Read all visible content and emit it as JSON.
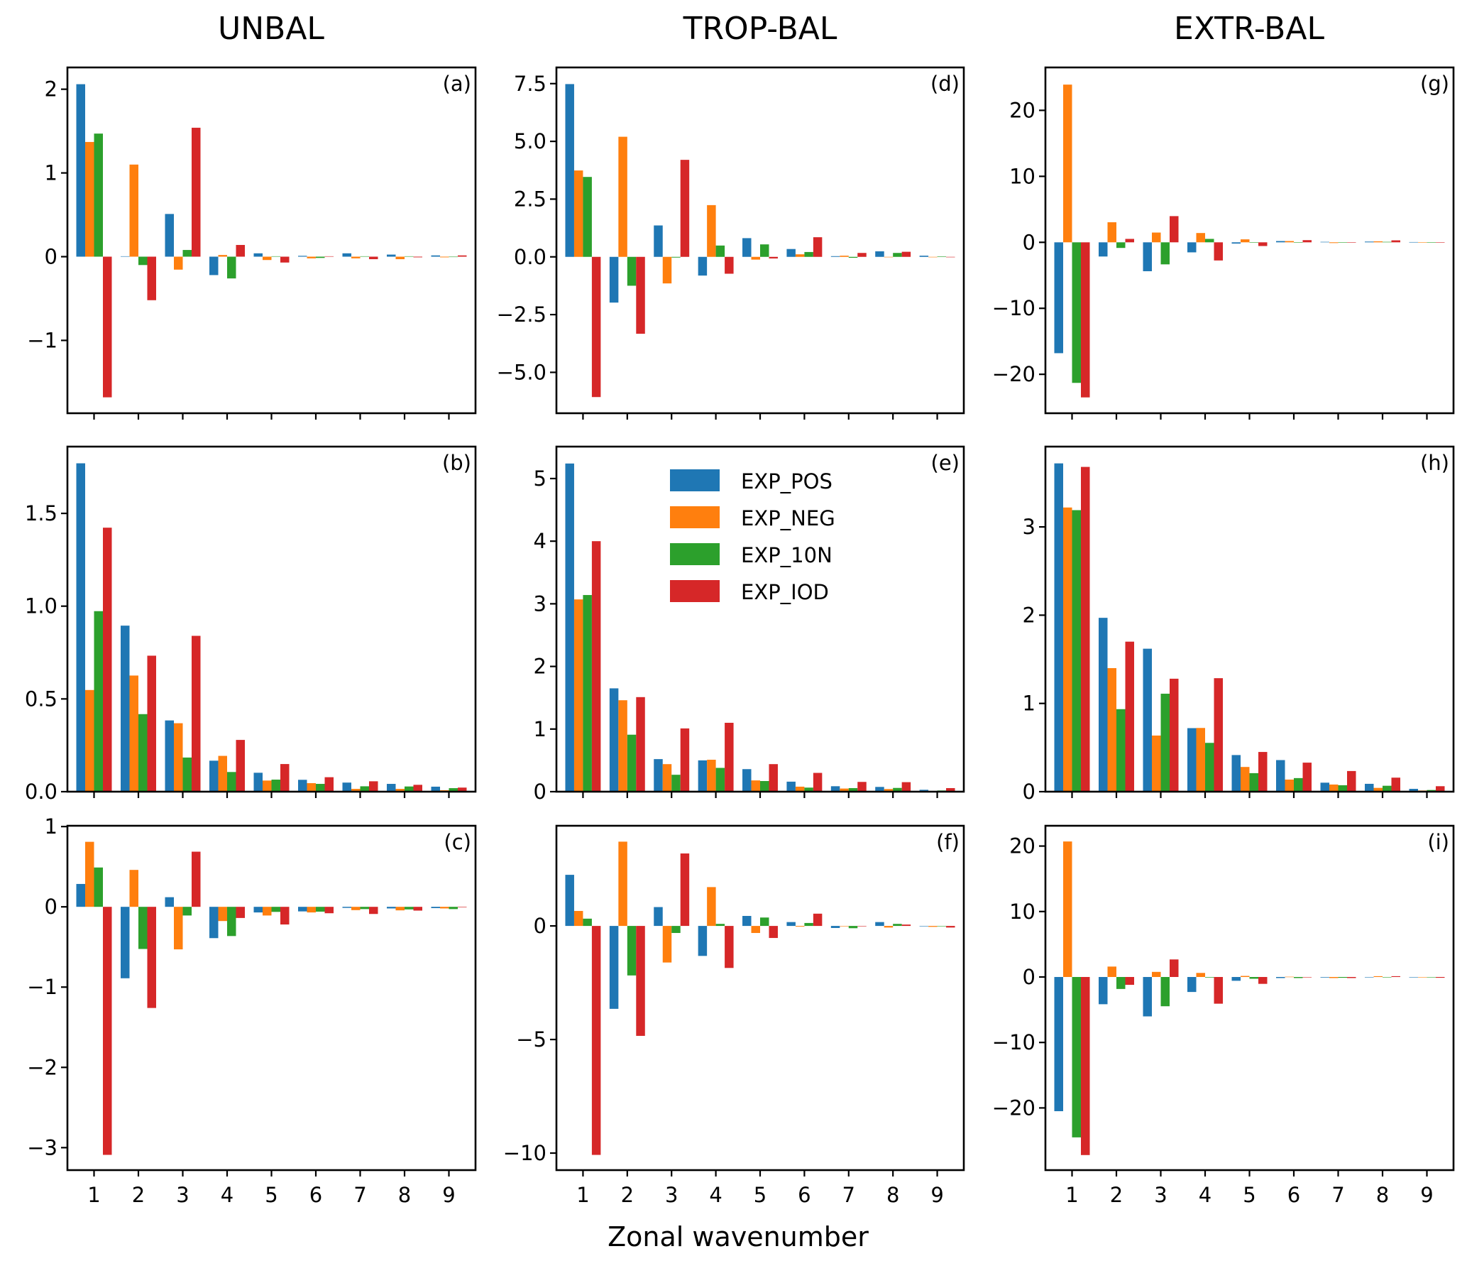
{
  "figure": {
    "column_titles": [
      "UNBAL",
      "TROP-BAL",
      "EXTR-BAL"
    ],
    "xlabel": "Zonal wavenumber"
  },
  "legend": {
    "placement": "upper-center of panel (e)",
    "entries": [
      {
        "label": "EXP_POS",
        "color": "#1f77b4"
      },
      {
        "label": "EXP_NEG",
        "color": "#ff7f0e"
      },
      {
        "label": "EXP_10N",
        "color": "#2ca02c"
      },
      {
        "label": "EXP_IOD",
        "color": "#d62728"
      }
    ]
  },
  "chart_data": [
    {
      "type": "bar",
      "panel": "(a)",
      "column": "UNBAL",
      "row": 1,
      "categories": [
        "1",
        "2",
        "3",
        "4",
        "5",
        "6",
        "7",
        "8",
        "9"
      ],
      "xlabel": "",
      "ylabel": "",
      "ylim": [
        -1.87,
        2.26
      ],
      "yticks": [
        -1,
        0,
        1,
        2
      ],
      "ytick_labels": [
        "−1",
        "0",
        "1",
        "2"
      ],
      "show_xtick_labels": false,
      "series": [
        {
          "name": "EXP_POS",
          "values": [
            2.06,
            0.005,
            0.51,
            -0.22,
            0.04,
            0.01,
            0.04,
            0.025,
            0.015
          ]
        },
        {
          "name": "EXP_NEG",
          "values": [
            1.37,
            1.1,
            -0.155,
            0.02,
            -0.04,
            -0.02,
            -0.02,
            -0.03,
            -0.008
          ]
        },
        {
          "name": "EXP_10N",
          "values": [
            1.47,
            -0.1,
            0.08,
            -0.26,
            0.005,
            -0.015,
            0.005,
            0.005,
            -0.005
          ]
        },
        {
          "name": "EXP_IOD",
          "values": [
            -1.68,
            -0.52,
            1.54,
            0.14,
            -0.07,
            0.005,
            -0.03,
            -0.008,
            0.015
          ]
        }
      ]
    },
    {
      "type": "bar",
      "panel": "(b)",
      "column": "UNBAL",
      "row": 2,
      "categories": [
        "1",
        "2",
        "3",
        "4",
        "5",
        "6",
        "7",
        "8",
        "9"
      ],
      "xlabel": "",
      "ylabel": "",
      "ylim": [
        0,
        1.86
      ],
      "yticks": [
        0,
        0.5,
        1.0,
        1.5
      ],
      "ytick_labels": [
        "0.0",
        "0.5",
        "1.0",
        "1.5"
      ],
      "show_xtick_labels": false,
      "series": [
        {
          "name": "EXP_POS",
          "values": [
            1.77,
            0.895,
            0.384,
            0.167,
            0.102,
            0.064,
            0.049,
            0.042,
            0.027
          ]
        },
        {
          "name": "EXP_NEG",
          "values": [
            0.548,
            0.626,
            0.369,
            0.193,
            0.06,
            0.046,
            0.015,
            0.015,
            0.008
          ]
        },
        {
          "name": "EXP_10N",
          "values": [
            0.973,
            0.418,
            0.184,
            0.106,
            0.065,
            0.042,
            0.029,
            0.028,
            0.019
          ]
        },
        {
          "name": "EXP_IOD",
          "values": [
            1.423,
            0.733,
            0.84,
            0.279,
            0.149,
            0.078,
            0.056,
            0.037,
            0.022
          ]
        }
      ]
    },
    {
      "type": "bar",
      "panel": "(c)",
      "column": "UNBAL",
      "row": 3,
      "categories": [
        "1",
        "2",
        "3",
        "4",
        "5",
        "6",
        "7",
        "8",
        "9"
      ],
      "xlabel": "",
      "ylabel": "",
      "ylim": [
        -3.28,
        1.01
      ],
      "yticks": [
        -3,
        -2,
        -1,
        0,
        1
      ],
      "ytick_labels": [
        "−3",
        "−2",
        "−1",
        "0",
        "1"
      ],
      "show_xtick_labels": true,
      "series": [
        {
          "name": "EXP_POS",
          "values": [
            0.285,
            -0.89,
            0.12,
            -0.39,
            -0.07,
            -0.057,
            -0.013,
            -0.02,
            -0.016
          ]
        },
        {
          "name": "EXP_NEG",
          "values": [
            0.81,
            0.46,
            -0.53,
            -0.177,
            -0.108,
            -0.07,
            -0.041,
            -0.044,
            -0.02
          ]
        },
        {
          "name": "EXP_10N",
          "values": [
            0.49,
            -0.525,
            -0.108,
            -0.364,
            -0.063,
            -0.06,
            -0.028,
            -0.032,
            -0.028
          ]
        },
        {
          "name": "EXP_IOD",
          "values": [
            -3.09,
            -1.26,
            0.687,
            -0.139,
            -0.22,
            -0.08,
            -0.089,
            -0.047,
            -0.006
          ]
        }
      ]
    },
    {
      "type": "bar",
      "panel": "(d)",
      "column": "TROP-BAL",
      "row": 1,
      "categories": [
        "1",
        "2",
        "3",
        "4",
        "5",
        "6",
        "7",
        "8",
        "9"
      ],
      "xlabel": "",
      "ylabel": "",
      "ylim": [
        -6.77,
        8.2
      ],
      "yticks": [
        -5,
        -2.5,
        0,
        2.5,
        5,
        7.5
      ],
      "ytick_labels": [
        "−5.0",
        "−2.5",
        "0.0",
        "2.5",
        "5.0",
        "7.5"
      ],
      "show_xtick_labels": false,
      "series": [
        {
          "name": "EXP_POS",
          "values": [
            7.48,
            -1.98,
            1.36,
            -0.81,
            0.81,
            0.34,
            0.03,
            0.24,
            0.05
          ]
        },
        {
          "name": "EXP_NEG",
          "values": [
            3.74,
            5.2,
            -1.15,
            2.24,
            -0.12,
            0.11,
            0.05,
            -0.01,
            -0.01
          ]
        },
        {
          "name": "EXP_10N",
          "values": [
            3.46,
            -1.25,
            -0.03,
            0.49,
            0.54,
            0.21,
            -0.04,
            0.17,
            0.02
          ]
        },
        {
          "name": "EXP_IOD",
          "values": [
            -6.07,
            -3.33,
            4.2,
            -0.73,
            -0.07,
            0.85,
            0.17,
            0.22,
            -0.01
          ]
        }
      ]
    },
    {
      "type": "bar",
      "panel": "(e)",
      "column": "TROP-BAL",
      "row": 2,
      "categories": [
        "1",
        "2",
        "3",
        "4",
        "5",
        "6",
        "7",
        "8",
        "9"
      ],
      "xlabel": "",
      "ylabel": "",
      "ylim": [
        0,
        5.51
      ],
      "yticks": [
        0,
        1,
        2,
        3,
        4,
        5
      ],
      "ytick_labels": [
        "0",
        "1",
        "2",
        "3",
        "4",
        "5"
      ],
      "show_xtick_labels": false,
      "series": [
        {
          "name": "EXP_POS",
          "values": [
            5.24,
            1.65,
            0.52,
            0.5,
            0.36,
            0.16,
            0.087,
            0.076,
            0.03
          ]
        },
        {
          "name": "EXP_NEG",
          "values": [
            3.07,
            1.46,
            0.44,
            0.51,
            0.18,
            0.08,
            0.05,
            0.042,
            0.011
          ]
        },
        {
          "name": "EXP_10N",
          "values": [
            3.14,
            0.91,
            0.27,
            0.38,
            0.17,
            0.065,
            0.057,
            0.06,
            0.019
          ]
        },
        {
          "name": "EXP_IOD",
          "values": [
            4.0,
            1.51,
            1.01,
            1.1,
            0.44,
            0.3,
            0.156,
            0.152,
            0.057
          ]
        }
      ]
    },
    {
      "type": "bar",
      "panel": "(f)",
      "column": "TROP-BAL",
      "row": 3,
      "categories": [
        "1",
        "2",
        "3",
        "4",
        "5",
        "6",
        "7",
        "8",
        "9"
      ],
      "xlabel": "",
      "ylabel": "",
      "ylim": [
        -10.75,
        4.41
      ],
      "yticks": [
        -10,
        -5,
        0
      ],
      "ytick_labels": [
        "−10",
        "−5",
        "0"
      ],
      "show_xtick_labels": true,
      "series": [
        {
          "name": "EXP_POS",
          "values": [
            2.25,
            -3.65,
            0.83,
            -1.32,
            0.44,
            0.17,
            -0.09,
            0.17,
            -0.01
          ]
        },
        {
          "name": "EXP_NEG",
          "values": [
            0.66,
            3.71,
            -1.61,
            1.71,
            -0.31,
            -0.03,
            -0.01,
            -0.07,
            -0.04
          ]
        },
        {
          "name": "EXP_10N",
          "values": [
            0.32,
            -2.18,
            -0.31,
            0.09,
            0.37,
            0.13,
            -0.1,
            0.09,
            0.0
          ]
        },
        {
          "name": "EXP_IOD",
          "values": [
            -10.08,
            -4.84,
            3.19,
            -1.85,
            -0.53,
            0.54,
            -0.01,
            0.06,
            -0.07
          ]
        }
      ]
    },
    {
      "type": "bar",
      "panel": "(g)",
      "column": "EXTR-BAL",
      "row": 1,
      "categories": [
        "1",
        "2",
        "3",
        "4",
        "5",
        "6",
        "7",
        "8",
        "9"
      ],
      "xlabel": "",
      "ylabel": "",
      "ylim": [
        -25.9,
        26.5
      ],
      "yticks": [
        -20,
        -10,
        0,
        10,
        20
      ],
      "ytick_labels": [
        "−20",
        "−10",
        "0",
        "10",
        "20"
      ],
      "show_xtick_labels": false,
      "series": [
        {
          "name": "EXP_POS",
          "values": [
            -16.8,
            -2.15,
            -4.38,
            -1.52,
            -0.19,
            0.19,
            0.07,
            0.11,
            0.04
          ]
        },
        {
          "name": "EXP_NEG",
          "values": [
            23.9,
            3.04,
            1.48,
            1.41,
            0.45,
            0.19,
            -0.11,
            0.15,
            0.0
          ]
        },
        {
          "name": "EXP_10N",
          "values": [
            -21.3,
            -0.85,
            -3.34,
            0.52,
            -0.04,
            -0.04,
            -0.04,
            0.07,
            0.0
          ]
        },
        {
          "name": "EXP_IOD",
          "values": [
            -23.5,
            0.52,
            3.97,
            -2.75,
            -0.56,
            0.33,
            0.0,
            0.3,
            -0.04
          ]
        }
      ]
    },
    {
      "type": "bar",
      "panel": "(h)",
      "column": "EXTR-BAL",
      "row": 2,
      "categories": [
        "1",
        "2",
        "3",
        "4",
        "5",
        "6",
        "7",
        "8",
        "9"
      ],
      "xlabel": "",
      "ylabel": "",
      "ylim": [
        0,
        3.91
      ],
      "yticks": [
        0,
        1,
        2,
        3
      ],
      "ytick_labels": [
        "0",
        "1",
        "2",
        "3"
      ],
      "show_xtick_labels": false,
      "series": [
        {
          "name": "EXP_POS",
          "values": [
            3.72,
            1.97,
            1.62,
            0.72,
            0.415,
            0.358,
            0.102,
            0.089,
            0.032
          ]
        },
        {
          "name": "EXP_NEG",
          "values": [
            3.22,
            1.4,
            0.636,
            0.722,
            0.28,
            0.137,
            0.081,
            0.043,
            0.013
          ]
        },
        {
          "name": "EXP_10N",
          "values": [
            3.19,
            0.935,
            1.11,
            0.553,
            0.21,
            0.154,
            0.073,
            0.067,
            0.019
          ]
        },
        {
          "name": "EXP_IOD",
          "values": [
            3.68,
            1.7,
            1.28,
            1.286,
            0.45,
            0.329,
            0.234,
            0.159,
            0.062
          ]
        }
      ]
    },
    {
      "type": "bar",
      "panel": "(i)",
      "column": "EXTR-BAL",
      "row": 3,
      "categories": [
        "1",
        "2",
        "3",
        "4",
        "5",
        "6",
        "7",
        "8",
        "9"
      ],
      "xlabel": "",
      "ylabel": "",
      "ylim": [
        -29.5,
        23.1
      ],
      "yticks": [
        -20,
        -10,
        0,
        10,
        20
      ],
      "ytick_labels": [
        "−20",
        "−10",
        "0",
        "10",
        "20"
      ],
      "show_xtick_labels": true,
      "series": [
        {
          "name": "EXP_POS",
          "values": [
            -20.5,
            -4.16,
            -6.02,
            -2.29,
            -0.58,
            -0.16,
            -0.08,
            -0.04,
            -0.04
          ]
        },
        {
          "name": "EXP_NEG",
          "values": [
            20.7,
            1.59,
            0.78,
            0.62,
            0.16,
            0.04,
            -0.16,
            0.12,
            -0.04
          ]
        },
        {
          "name": "EXP_10N",
          "values": [
            -24.5,
            -1.83,
            -4.47,
            -0.08,
            -0.27,
            -0.16,
            -0.12,
            -0.04,
            -0.04
          ]
        },
        {
          "name": "EXP_IOD",
          "values": [
            -27.2,
            -1.2,
            2.68,
            -4.08,
            -1.05,
            0.0,
            -0.16,
            0.12,
            -0.12
          ]
        }
      ]
    }
  ]
}
